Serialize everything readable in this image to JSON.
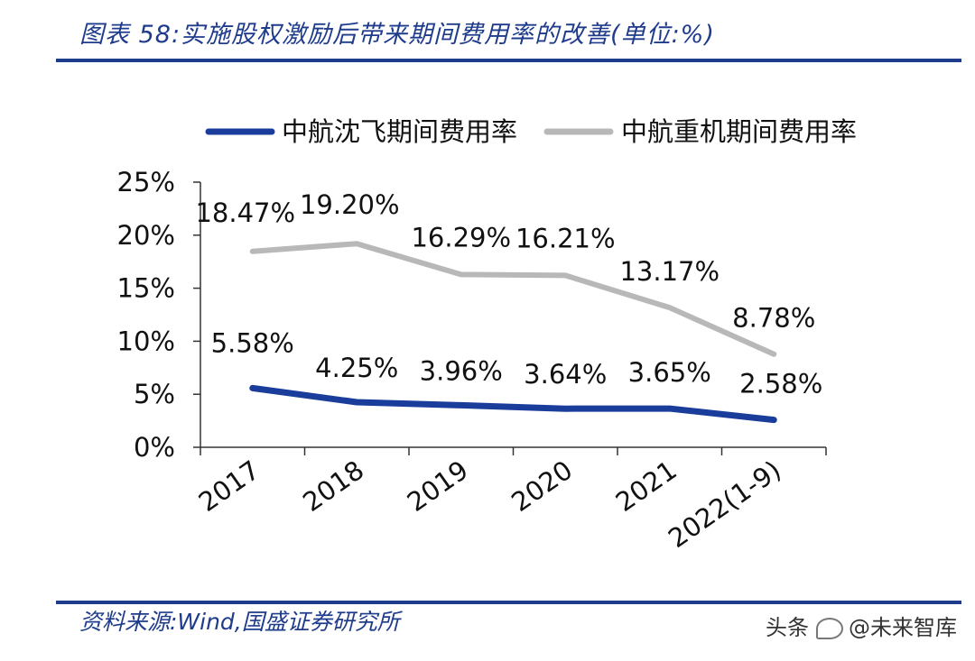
{
  "header": {
    "title": "图表 58:实施股权激励后带来期间费用率的改善(单位:%)"
  },
  "footer": {
    "source": "资料来源:Wind,国盛证券研究所",
    "watermark_prefix": "头条",
    "watermark_name": "@未来智库",
    "watermark_icon": "wechat-logo-icon"
  },
  "colors": {
    "accent": "#1f3c8c",
    "series_shenfei": "#1a3d9c",
    "series_zhongji": "#b8b8b8"
  },
  "chart_data": {
    "type": "line",
    "title": "",
    "xlabel": "",
    "ylabel": "",
    "categories": [
      "2017",
      "2018",
      "2019",
      "2020",
      "2021",
      "2022(1-9)"
    ],
    "ylim": [
      0,
      25
    ],
    "yticks": [
      "0%",
      "5%",
      "10%",
      "15%",
      "20%",
      "25%"
    ],
    "legend_position": "top",
    "grid": false,
    "series": [
      {
        "name": "中航沈飞期间费用率",
        "values": [
          5.58,
          4.25,
          3.96,
          3.64,
          3.65,
          2.58
        ],
        "labels": [
          "5.58%",
          "4.25%",
          "3.96%",
          "3.64%",
          "3.65%",
          "2.58%"
        ],
        "color": "#1a3d9c"
      },
      {
        "name": "中航重机期间费用率",
        "values": [
          18.47,
          19.2,
          16.29,
          16.21,
          13.17,
          8.78
        ],
        "labels": [
          "18.47%",
          "19.20%",
          "16.29%",
          "16.21%",
          "13.17%",
          "8.78%"
        ],
        "color": "#b8b8b8"
      }
    ]
  }
}
